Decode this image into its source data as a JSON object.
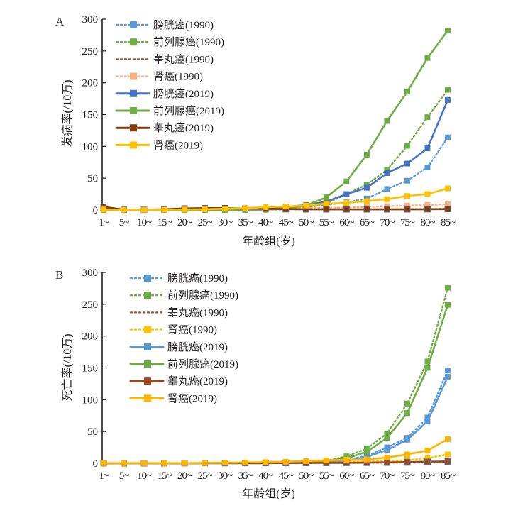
{
  "chart_data": [
    {
      "type": "line",
      "panel_label": "A",
      "ylabel": "发病率(/10万)",
      "xlabel": "年龄组(岁)",
      "ylim": [
        0,
        300
      ],
      "yticks": [
        0,
        50,
        100,
        150,
        200,
        250,
        300
      ],
      "categories": [
        "1~",
        "5~",
        "10~",
        "15~",
        "20~",
        "25~",
        "30~",
        "35~",
        "40~",
        "45~",
        "50~",
        "55~",
        "60~",
        "65~",
        "70~",
        "75~",
        "80~",
        "85~"
      ],
      "legend_position": "top-left",
      "series": [
        {
          "name": "膀胱癌(1990)",
          "color": "#5b9bd5",
          "dash": true,
          "values": [
            0.3,
            0.1,
            0.1,
            0.2,
            0.4,
            0.6,
            0.8,
            1.2,
            1.8,
            3,
            5,
            8,
            12,
            18,
            33,
            46,
            67,
            114
          ]
        },
        {
          "name": "前列腺癌(1990)",
          "color": "#70ad47",
          "dash": true,
          "values": [
            0.1,
            0,
            0,
            0,
            0,
            0,
            0,
            0.1,
            0.3,
            1,
            3,
            10,
            25,
            40,
            63,
            101,
            146,
            189
          ]
        },
        {
          "name": "睾丸癌(1990)",
          "color": "#a0522d",
          "dash": true,
          "values": [
            2,
            0.3,
            0.3,
            1,
            2,
            2,
            2,
            2,
            1.5,
            1.2,
            1,
            1,
            1,
            1,
            1,
            1.2,
            1.5,
            2
          ]
        },
        {
          "name": "肾癌(1990)",
          "color": "#f4b183",
          "dash": true,
          "values": [
            0.8,
            0.3,
            0.2,
            0.2,
            0.3,
            0.5,
            0.7,
            1,
            1.5,
            2,
            3,
            3.5,
            4,
            5,
            6,
            7,
            8,
            9
          ]
        },
        {
          "name": "膀胱癌(2019)",
          "color": "#4472c4",
          "dash": false,
          "values": [
            0.3,
            0.1,
            0.1,
            0.3,
            0.6,
            1,
            1.5,
            2.2,
            3,
            4.5,
            8,
            13,
            25,
            35,
            58,
            73,
            97,
            173
          ]
        },
        {
          "name": "前列腺癌(2019)",
          "color": "#70ad47",
          "dash": false,
          "values": [
            0.1,
            0,
            0,
            0,
            0,
            0,
            0.1,
            0.3,
            0.8,
            2,
            7,
            20,
            45,
            87,
            140,
            186,
            239,
            282
          ]
        },
        {
          "name": "睾丸癌(2019)",
          "color": "#843c0c",
          "dash": false,
          "values": [
            5,
            0.5,
            0.5,
            1.2,
            2.5,
            3,
            3,
            2.5,
            2,
            1.5,
            1.2,
            1,
            1,
            1,
            1,
            1,
            1.2,
            1.5
          ]
        },
        {
          "name": "肾癌(2019)",
          "color": "#ffc000",
          "dash": false,
          "values": [
            0.8,
            0.3,
            0.3,
            0.5,
            0.8,
            1.2,
            2,
            3,
            4.5,
            5.5,
            7,
            10,
            11,
            14,
            17,
            22,
            25,
            34
          ]
        }
      ]
    },
    {
      "type": "line",
      "panel_label": "B",
      "ylabel": "死亡率(/10万)",
      "xlabel": "年龄组(岁)",
      "ylim": [
        0,
        300
      ],
      "yticks": [
        0,
        50,
        100,
        150,
        200,
        250,
        300
      ],
      "categories": [
        "1~",
        "5~",
        "10~",
        "15~",
        "20~",
        "25~",
        "30~",
        "35~",
        "40~",
        "45~",
        "50~",
        "55~",
        "60~",
        "65~",
        "70~",
        "75~",
        "80~",
        "85~"
      ],
      "legend_position": "top-left",
      "series": [
        {
          "name": "膀胱癌(1990)",
          "color": "#5b9bd5",
          "dash": true,
          "values": [
            0,
            0,
            0,
            0,
            0,
            0,
            0,
            0.1,
            0.2,
            0.5,
            1,
            2,
            5,
            12,
            25,
            40,
            72,
            146
          ]
        },
        {
          "name": "前列腺癌(1990)",
          "color": "#70ad47",
          "dash": true,
          "values": [
            0,
            0,
            0,
            0,
            0,
            0,
            0,
            0,
            0.1,
            0.3,
            1.5,
            4,
            11,
            23,
            47,
            94,
            160,
            276
          ]
        },
        {
          "name": "睾丸癌(1990)",
          "color": "#a0522d",
          "dash": true,
          "values": [
            0.1,
            0,
            0,
            0.1,
            0.3,
            0.4,
            0.4,
            0.4,
            0.4,
            0.4,
            0.4,
            0.5,
            0.6,
            0.8,
            1,
            1.2,
            1.5,
            2
          ]
        },
        {
          "name": "肾癌(1990)",
          "color": "#ffc000",
          "dash": true,
          "values": [
            0.2,
            0.1,
            0.1,
            0.1,
            0.1,
            0.2,
            0.3,
            0.4,
            0.6,
            0.9,
            1.3,
            2,
            2.5,
            3,
            4,
            5,
            8,
            14
          ]
        },
        {
          "name": "膀胱癌(2019)",
          "color": "#5b9bd5",
          "dash": false,
          "values": [
            0,
            0,
            0,
            0,
            0,
            0,
            0,
            0.1,
            0.2,
            0.5,
            1,
            2,
            4,
            10,
            21,
            37,
            66,
            136
          ]
        },
        {
          "name": "前列腺癌(2019)",
          "color": "#70ad47",
          "dash": false,
          "values": [
            0,
            0,
            0,
            0,
            0,
            0,
            0,
            0,
            0.1,
            0.3,
            1.2,
            3,
            8,
            18,
            40,
            79,
            150,
            249
          ]
        },
        {
          "name": "睾丸癌(2019)",
          "color": "#9c4a1f",
          "dash": false,
          "values": [
            0.1,
            0,
            0,
            0.1,
            0.2,
            0.3,
            0.3,
            0.3,
            0.3,
            0.4,
            0.5,
            0.6,
            0.8,
            1,
            1.5,
            2,
            2.5,
            3
          ]
        },
        {
          "name": "肾癌(2019)",
          "color": "#ffb400",
          "dash": false,
          "values": [
            0.3,
            0.1,
            0.1,
            0.2,
            0.3,
            0.5,
            0.8,
            1.2,
            1.8,
            2.5,
            3.5,
            4.5,
            5.5,
            6,
            9,
            14,
            20,
            38
          ]
        }
      ]
    }
  ]
}
